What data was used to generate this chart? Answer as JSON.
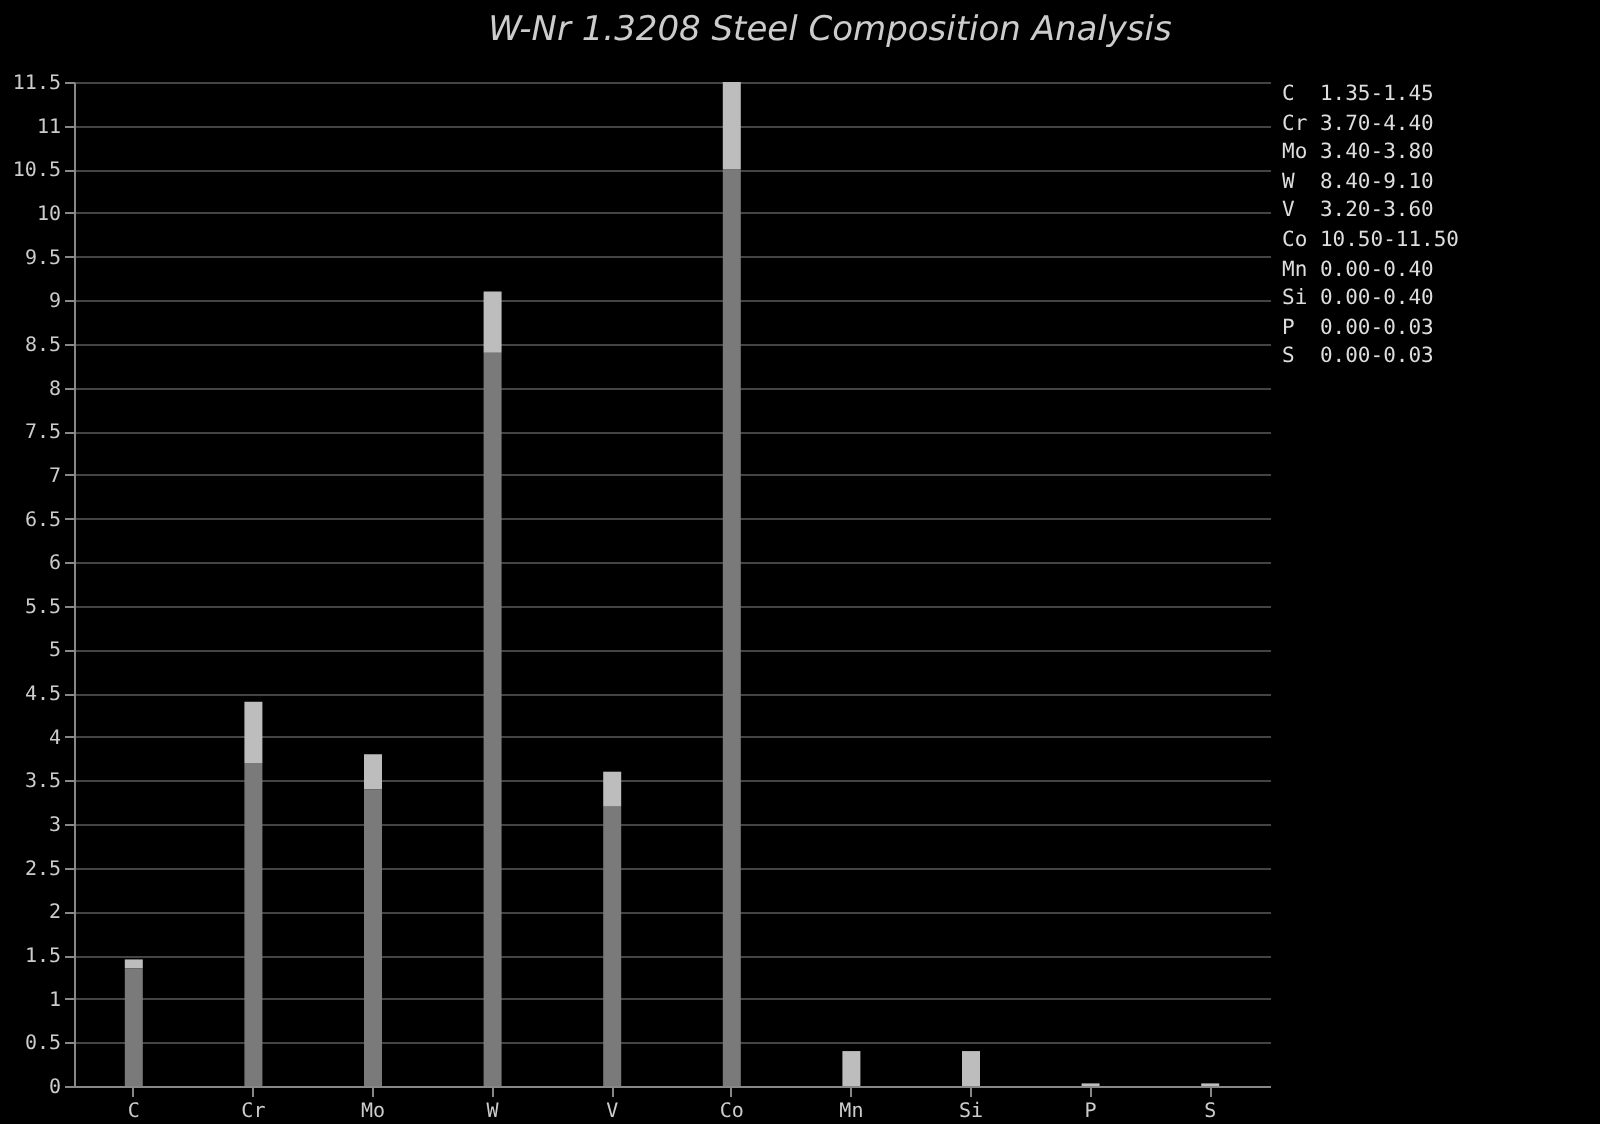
{
  "chart_data": {
    "type": "bar",
    "title": "W-Nr 1.3208 Steel Composition Analysis",
    "categories": [
      "C",
      "Cr",
      "Mo",
      "W",
      "V",
      "Co",
      "Mn",
      "Si",
      "P",
      "S"
    ],
    "stacked": true,
    "series": [
      {
        "color": "#7a7a7a",
        "values": [
          1.35,
          3.7,
          3.4,
          8.4,
          3.2,
          10.5,
          0,
          0,
          0,
          0
        ]
      },
      {
        "color": "#bdbdbd",
        "values": [
          0.1,
          0.7,
          0.4,
          0.7,
          0.4,
          1.0,
          0.4,
          0.4,
          0.03,
          0.03
        ]
      }
    ],
    "ylim": [
      0,
      11.5
    ],
    "yticks": [
      0,
      0.5,
      1,
      1.5,
      2,
      2.5,
      3,
      3.5,
      4,
      4.5,
      5,
      5.5,
      6,
      6.5,
      7,
      7.5,
      8,
      8.5,
      9,
      9.5,
      10,
      10.5,
      11,
      11.5
    ],
    "grid": "y",
    "annotations": [
      "C  1.35-1.45",
      "Cr 3.70-4.40",
      "Mo 3.40-3.80",
      "W  8.40-9.10",
      "V  3.20-3.60",
      "Co 10.50-11.50",
      "Mn 0.00-0.40",
      "Si 0.00-0.40",
      "P  0.00-0.03",
      "S  0.00-0.03"
    ]
  }
}
